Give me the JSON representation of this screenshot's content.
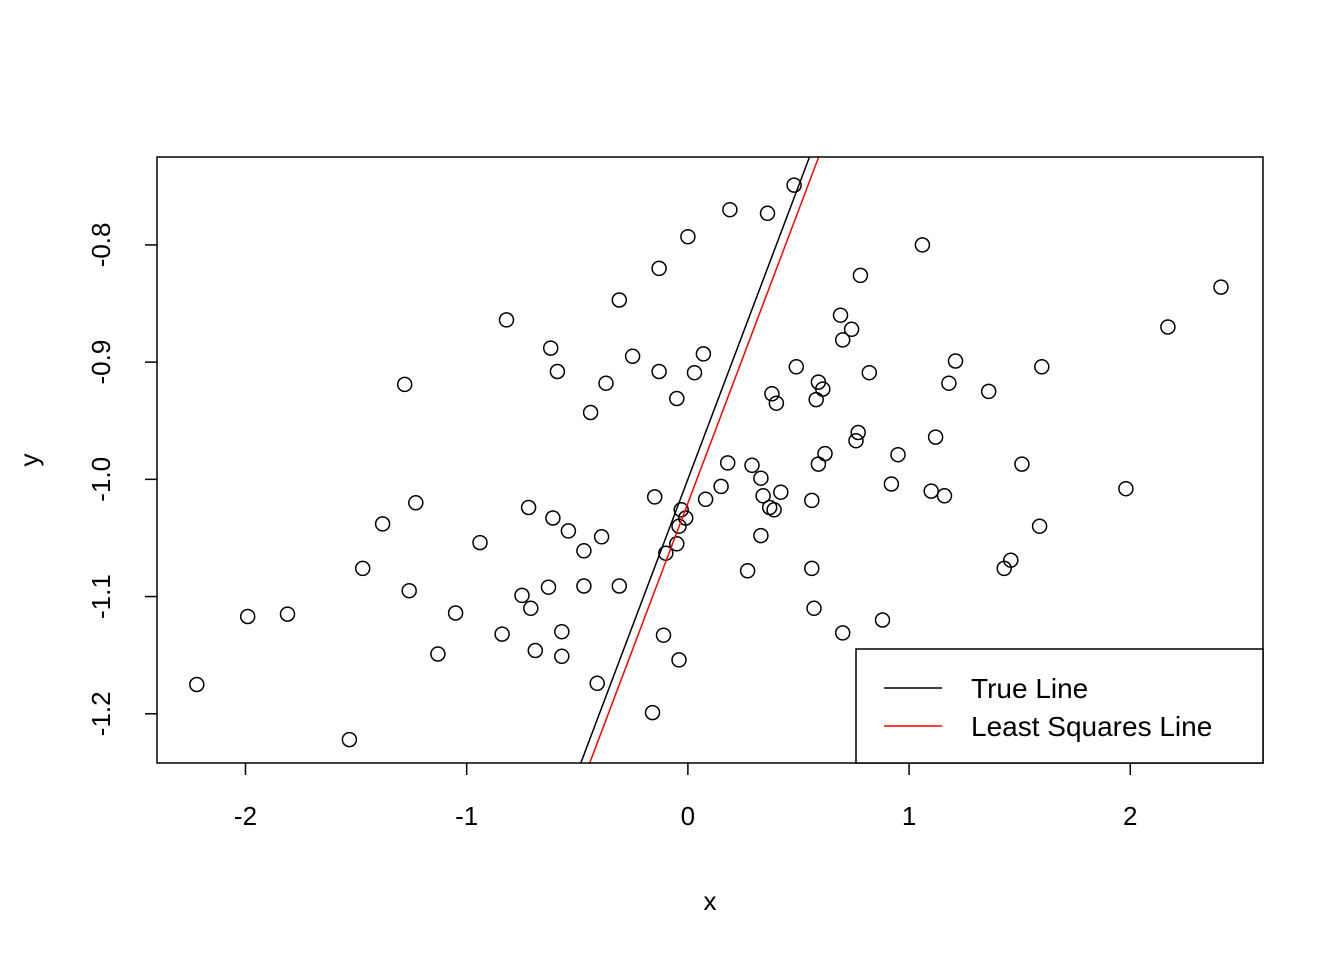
{
  "chart_data": {
    "type": "scatter",
    "title": "",
    "xlabel": "x",
    "ylabel": "y",
    "xlim": [
      -2.4,
      2.6
    ],
    "ylim": [
      -1.242,
      -0.725
    ],
    "x_ticks": [
      -2,
      -1,
      0,
      1,
      2
    ],
    "x_tick_labels": [
      "-2",
      "-1",
      "0",
      "1",
      "2"
    ],
    "y_ticks": [
      -1.2,
      -1.1,
      -1.0,
      -0.9,
      -0.8
    ],
    "y_tick_labels": [
      "-1.2",
      "-1.1",
      "-1.0",
      "-0.9",
      "-0.8"
    ],
    "grid": false,
    "legend_position": "bottom-right",
    "points": [
      [
        -2.22,
        -1.175
      ],
      [
        -1.99,
        -1.117
      ],
      [
        -1.81,
        -1.115
      ],
      [
        -1.53,
        -1.222
      ],
      [
        -1.47,
        -1.076
      ],
      [
        -1.38,
        -1.038
      ],
      [
        -1.28,
        -0.919
      ],
      [
        -1.26,
        -1.095
      ],
      [
        -1.23,
        -1.02
      ],
      [
        -1.13,
        -1.149
      ],
      [
        -1.05,
        -1.114
      ],
      [
        -0.94,
        -1.054
      ],
      [
        -0.84,
        -1.132
      ],
      [
        -0.82,
        -0.864
      ],
      [
        -0.75,
        -1.099
      ],
      [
        -0.72,
        -1.024
      ],
      [
        -0.71,
        -1.11
      ],
      [
        -0.69,
        -1.146
      ],
      [
        -0.63,
        -1.092
      ],
      [
        -0.62,
        -0.888
      ],
      [
        -0.61,
        -1.033
      ],
      [
        -0.59,
        -0.908
      ],
      [
        -0.57,
        -1.13
      ],
      [
        -0.57,
        -1.151
      ],
      [
        -0.54,
        -1.044
      ],
      [
        -0.47,
        -1.061
      ],
      [
        -0.47,
        -1.091
      ],
      [
        -0.44,
        -0.943
      ],
      [
        -0.41,
        -1.174
      ],
      [
        -0.39,
        -1.049
      ],
      [
        -0.37,
        -0.918
      ],
      [
        -0.31,
        -0.847
      ],
      [
        -0.31,
        -1.091
      ],
      [
        -0.25,
        -0.895
      ],
      [
        -0.16,
        -1.199
      ],
      [
        -0.15,
        -1.015
      ],
      [
        -0.13,
        -0.82
      ],
      [
        -0.13,
        -0.908
      ],
      [
        -0.11,
        -1.133
      ],
      [
        -0.1,
        -1.063
      ],
      [
        -0.05,
        -1.055
      ],
      [
        -0.05,
        -0.931
      ],
      [
        -0.04,
        -1.154
      ],
      [
        -0.04,
        -1.04
      ],
      [
        -0.03,
        -1.026
      ],
      [
        -0.01,
        -1.033
      ],
      [
        0.0,
        -0.793
      ],
      [
        0.03,
        -0.909
      ],
      [
        0.07,
        -0.893
      ],
      [
        0.08,
        -1.017
      ],
      [
        0.15,
        -1.006
      ],
      [
        0.18,
        -0.986
      ],
      [
        0.19,
        -0.77
      ],
      [
        0.27,
        -1.078
      ],
      [
        0.29,
        -0.988
      ],
      [
        0.33,
        -0.999
      ],
      [
        0.33,
        -1.048
      ],
      [
        0.34,
        -1.014
      ],
      [
        0.36,
        -0.773
      ],
      [
        0.37,
        -1.024
      ],
      [
        0.38,
        -0.927
      ],
      [
        0.39,
        -1.026
      ],
      [
        0.4,
        -0.935
      ],
      [
        0.42,
        -1.011
      ],
      [
        0.48,
        -0.749
      ],
      [
        0.49,
        -0.904
      ],
      [
        0.56,
        -1.018
      ],
      [
        0.56,
        -1.076
      ],
      [
        0.57,
        -1.11
      ],
      [
        0.58,
        -0.932
      ],
      [
        0.59,
        -0.917
      ],
      [
        0.59,
        -0.987
      ],
      [
        0.61,
        -0.923
      ],
      [
        0.62,
        -0.978
      ],
      [
        0.69,
        -0.86
      ],
      [
        0.7,
        -0.881
      ],
      [
        0.7,
        -1.131
      ],
      [
        0.74,
        -0.872
      ],
      [
        0.76,
        -0.967
      ],
      [
        0.77,
        -0.96
      ],
      [
        0.78,
        -0.826
      ],
      [
        0.82,
        -0.909
      ],
      [
        0.88,
        -1.12
      ],
      [
        0.92,
        -1.004
      ],
      [
        0.95,
        -0.979
      ],
      [
        1.06,
        -0.8
      ],
      [
        1.1,
        -1.01
      ],
      [
        1.12,
        -0.964
      ],
      [
        1.16,
        -1.014
      ],
      [
        1.18,
        -0.918
      ],
      [
        1.21,
        -0.899
      ],
      [
        1.36,
        -0.925
      ],
      [
        1.43,
        -1.076
      ],
      [
        1.46,
        -1.069
      ],
      [
        1.51,
        -0.987
      ],
      [
        1.59,
        -1.04
      ],
      [
        1.6,
        -0.904
      ],
      [
        1.98,
        -1.008
      ],
      [
        2.17,
        -0.87
      ],
      [
        2.41,
        -0.836
      ]
    ],
    "lines": [
      {
        "name": "True Line",
        "color": "#000000",
        "intercept": -1.0,
        "slope": 0.5
      },
      {
        "name": "Least Squares Line",
        "color": "#ff0000",
        "intercept": -1.0204,
        "slope": 0.4993
      }
    ]
  }
}
